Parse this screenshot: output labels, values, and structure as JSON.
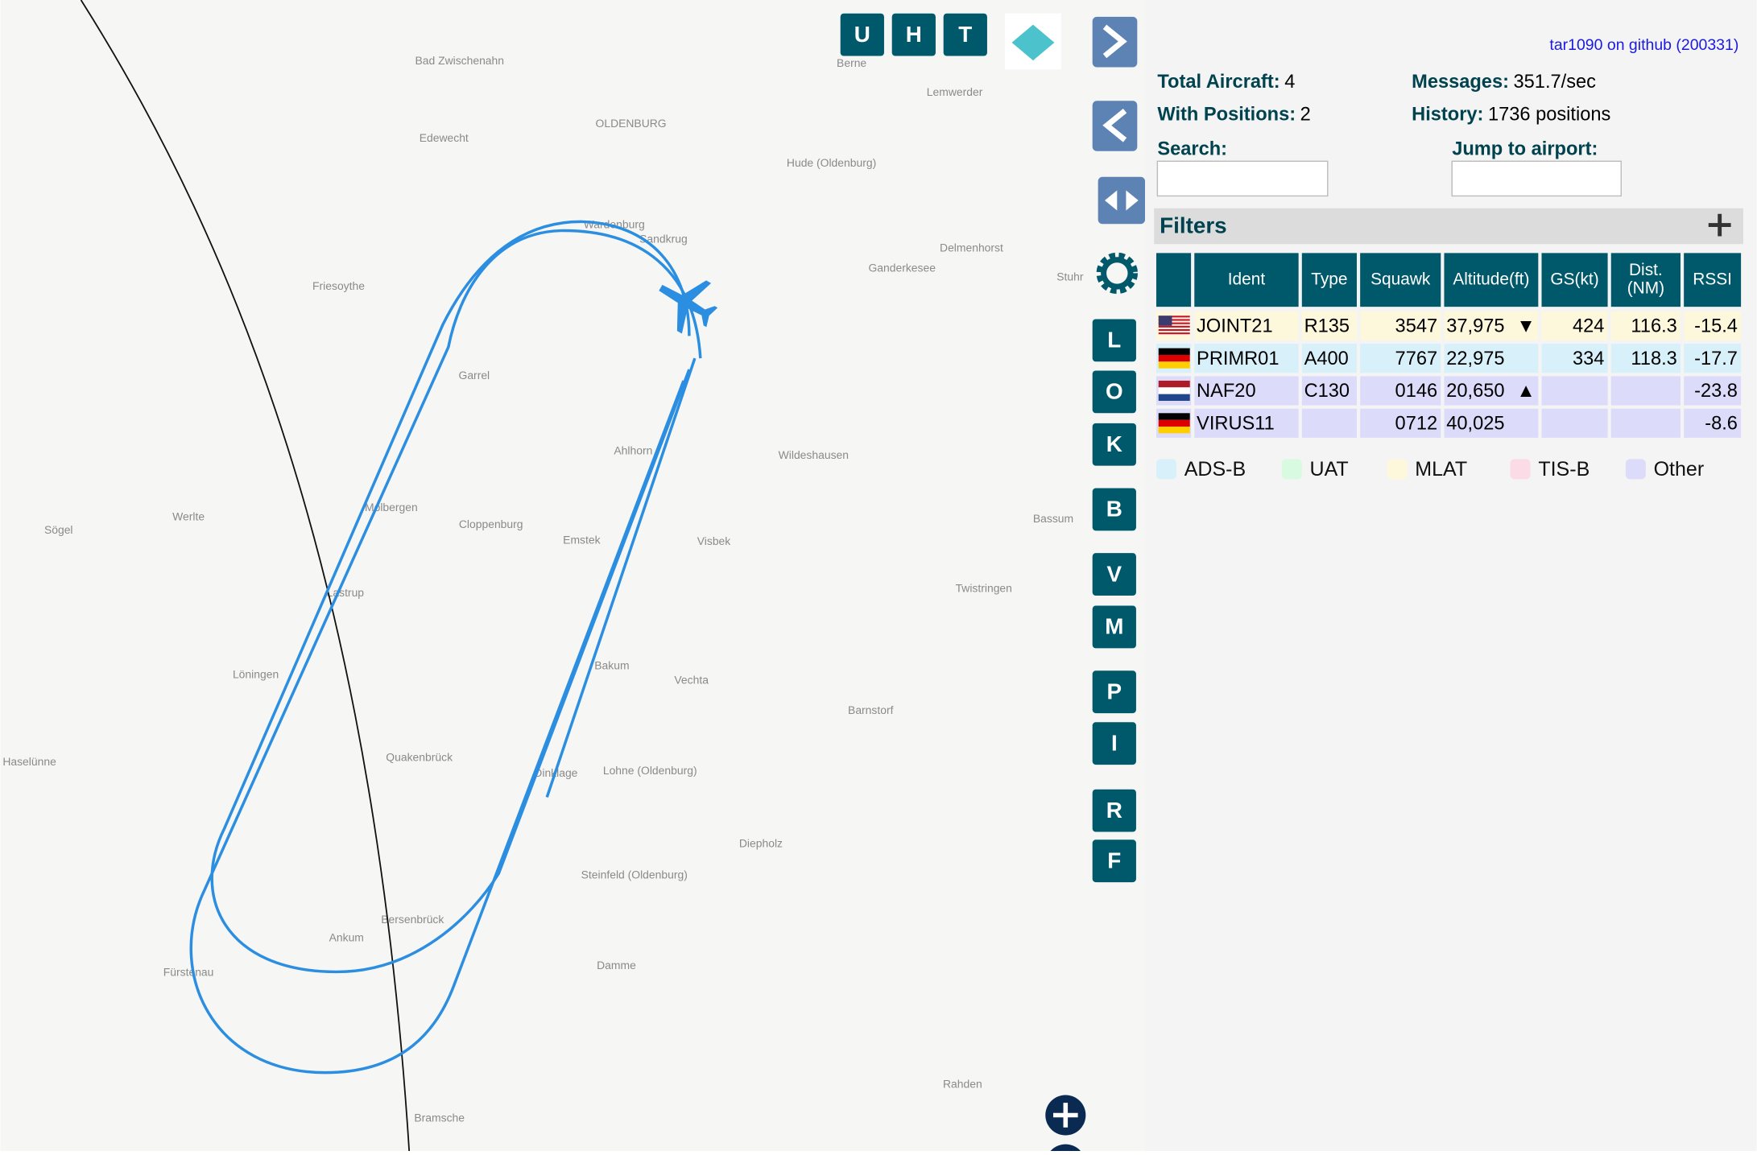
{
  "map": {
    "places": [
      "Bad Zwischenahn",
      "OLDENBURG",
      "Edewecht",
      "Hude (Oldenburg)",
      "Lemwerder",
      "Berne",
      "Delmenhorst",
      "Ganderkesee",
      "Stuhr",
      "Friesoythe",
      "Wardenburg",
      "Sandkrug",
      "Garrel",
      "Ahlhorn",
      "Wildeshausen",
      "Molbergen",
      "Cloppenburg",
      "Emstek",
      "Visbek",
      "Werlte",
      "Sögel",
      "Bassum",
      "Twistringen",
      "Lastrup",
      "Löningen",
      "Bakum",
      "Vechta",
      "Barnstorf",
      "Haselünne",
      "Quakenbrück",
      "Dinklage",
      "Lohne (Oldenburg)",
      "Diepholz",
      "Steinfeld (Oldenburg)",
      "Bersenbrück",
      "Ankum",
      "Fürstenau",
      "Damme",
      "Rahden",
      "Bramsche"
    ],
    "top_buttons": [
      "U",
      "H",
      "T"
    ],
    "side_buttons": [
      "L",
      "O",
      "K",
      "B",
      "V",
      "M",
      "P",
      "I",
      "R",
      "F"
    ]
  },
  "sidebar": {
    "link": "tar1090 on github (200331)",
    "stats": [
      {
        "label": "Total Aircraft:",
        "value": "4"
      },
      {
        "label": "With Positions:",
        "value": "2"
      },
      {
        "label": "Messages:",
        "value": "351.7/sec"
      },
      {
        "label": "History:",
        "value": "1736 positions"
      }
    ],
    "search": "Search:",
    "jump": "Jump to airport:",
    "filters": "Filters",
    "table": {
      "headers": [
        "Ident",
        "Type",
        "Squawk",
        "Altitude(ft)",
        "GS(kt)",
        [
          "Dist.",
          "(NM)"
        ],
        "RSSI"
      ],
      "rows": [
        {
          "flag": "us",
          "cells": [
            "JOINT21",
            "R135",
            "3547",
            "37,975",
            "424",
            "116.3",
            "-15.4"
          ],
          "trend": "▼",
          "color": "#fdf7dc"
        },
        {
          "flag": "de",
          "cells": [
            "PRIMR01",
            "A400",
            "7767",
            "22,975",
            "334",
            "118.3",
            "-17.7"
          ],
          "trend": null,
          "color": "#d8f0fa"
        },
        {
          "flag": "nl",
          "cells": [
            "NAF20",
            "C130",
            "0146",
            "20,650",
            null,
            null,
            "-23.8"
          ],
          "trend": "▲",
          "color": "#dcdcfa"
        },
        {
          "flag": "de",
          "cells": [
            "VIRUS11",
            null,
            "0712",
            "40,025",
            null,
            null,
            "-8.6"
          ],
          "trend": null,
          "color": "#dcdcfa"
        }
      ]
    },
    "legend": [
      {
        "name": "ADS-B",
        "color": "#d8f0fa"
      },
      {
        "name": "UAT",
        "color": "#d8fae0"
      },
      {
        "name": "MLAT",
        "color": "#fdf7dc"
      },
      {
        "name": "TIS-B",
        "color": "#fbdce6"
      },
      {
        "name": "Other",
        "color": "#dcdcfa"
      }
    ]
  }
}
